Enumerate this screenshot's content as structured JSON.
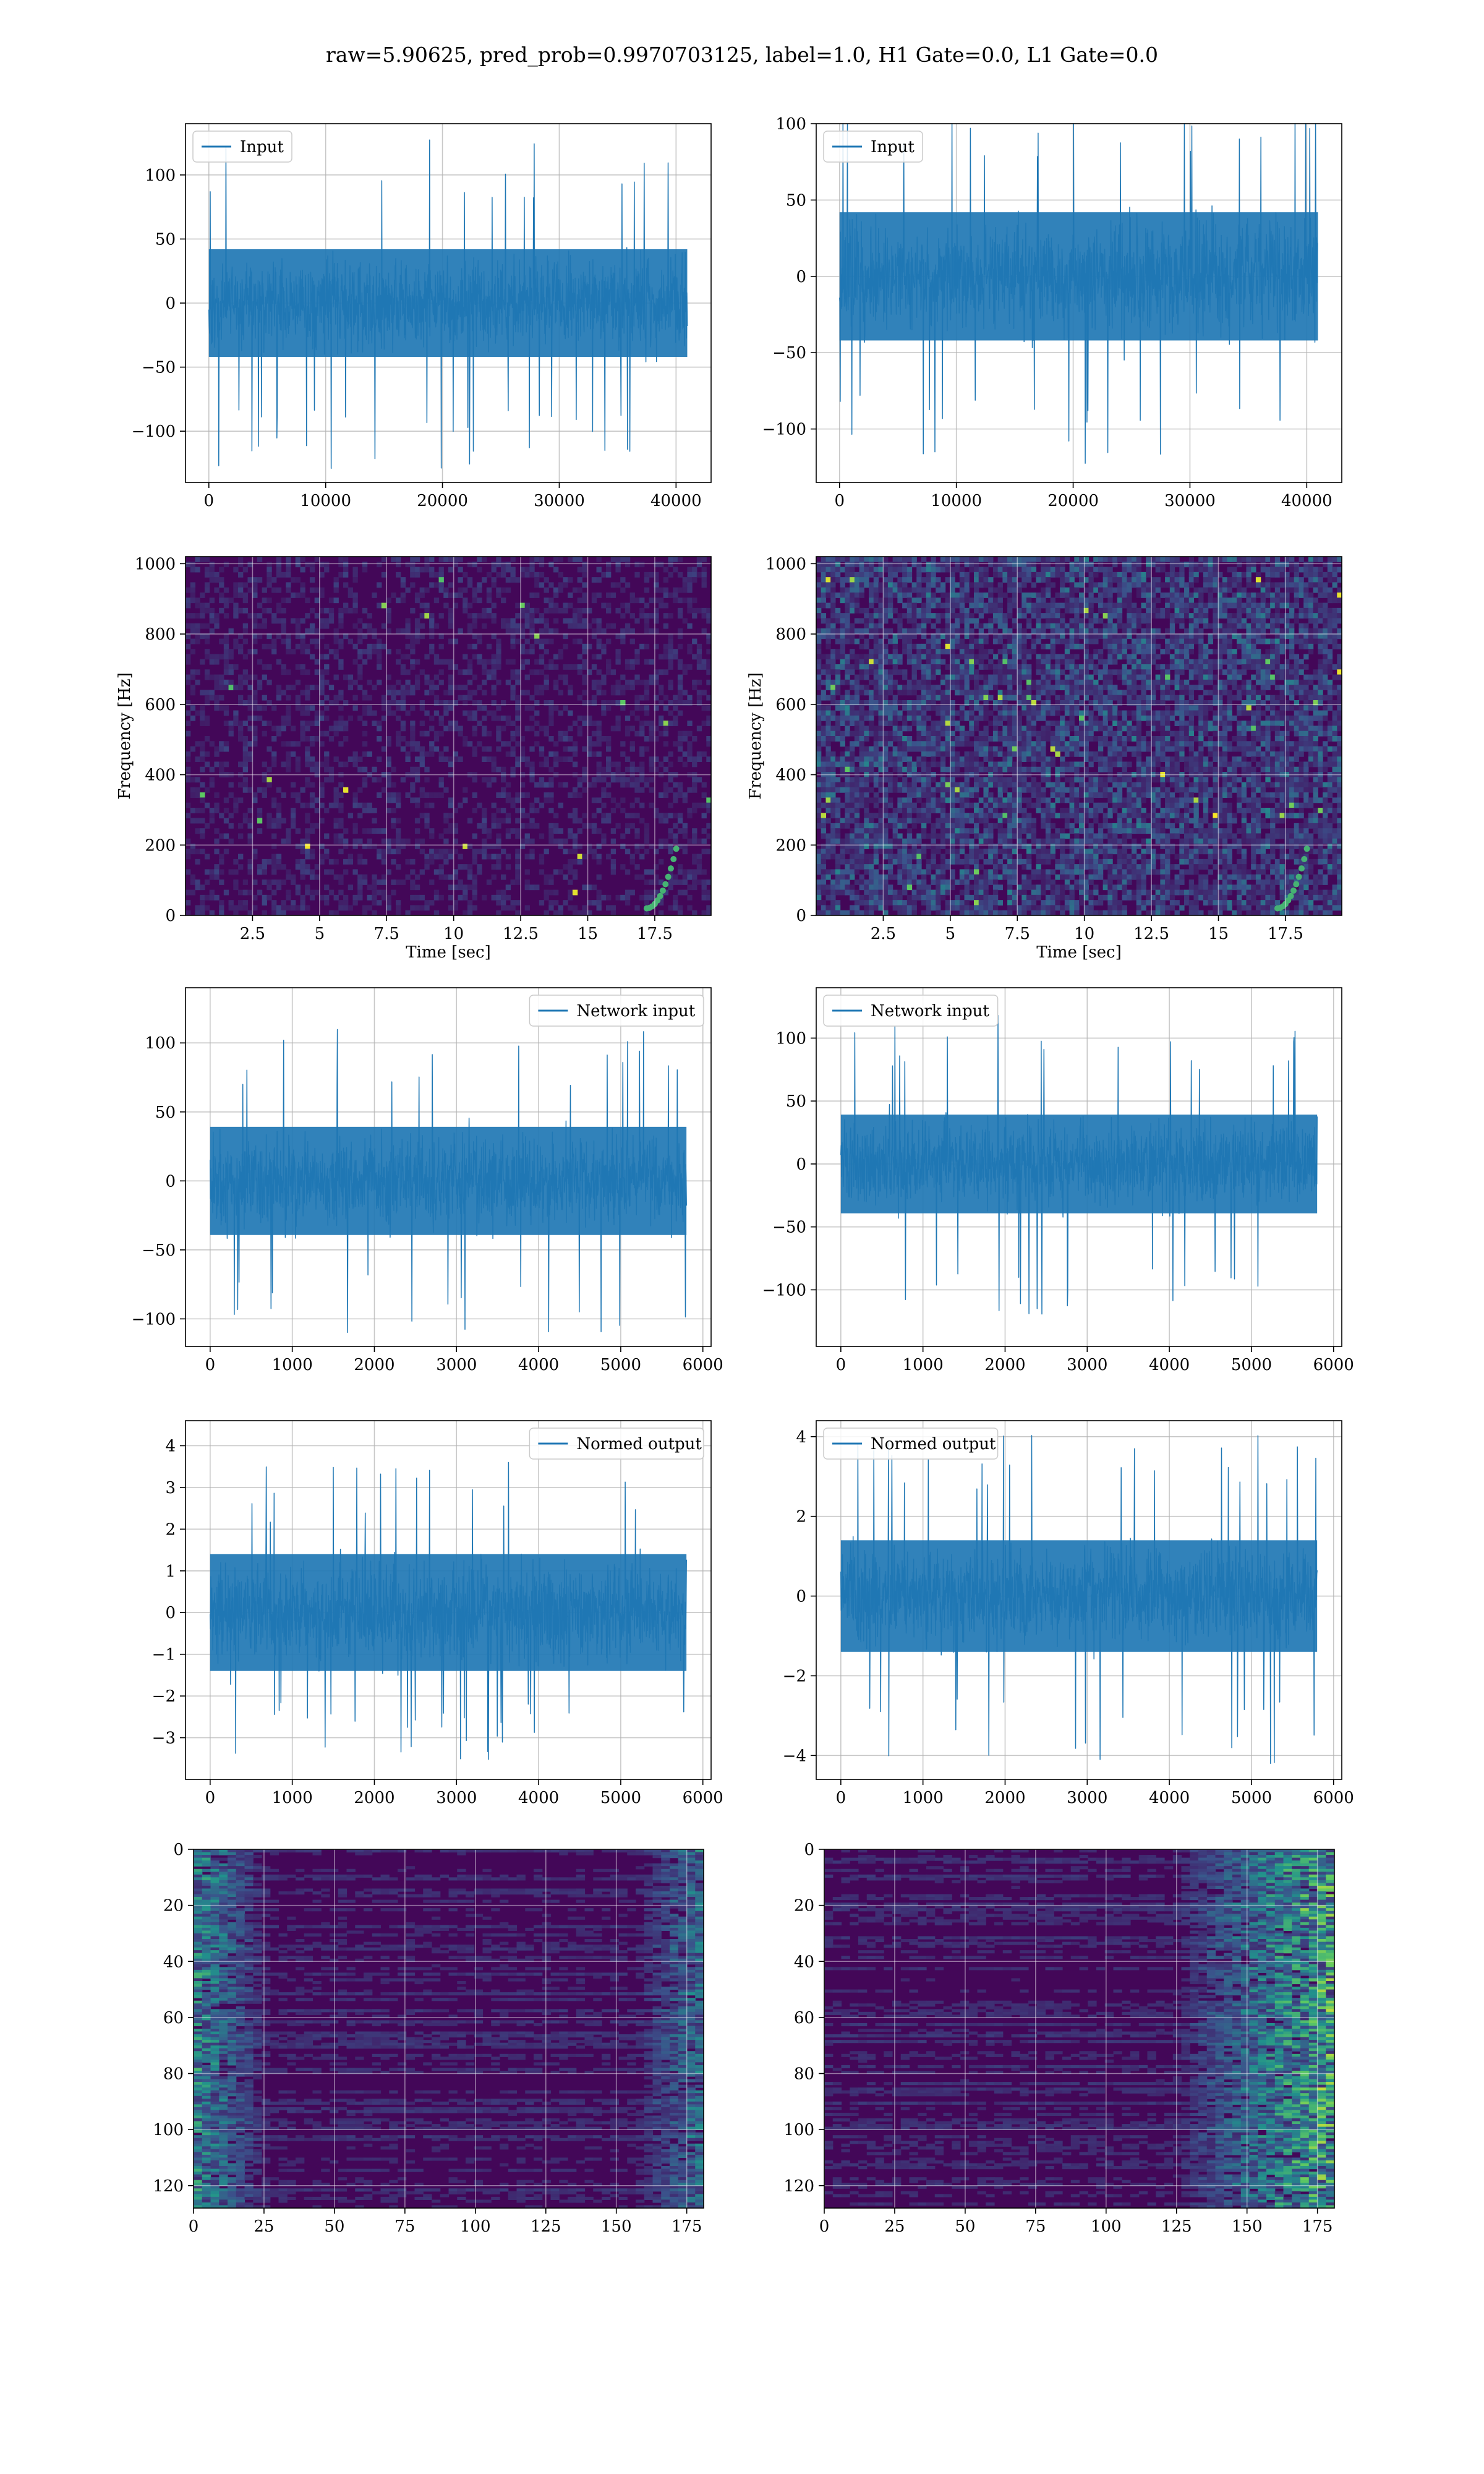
{
  "suptitle": "raw=5.90625, pred_prob=0.9970703125, label=1.0, H1 Gate=0.0, L1 Gate=0.0",
  "colors": {
    "line": "#1f77b4",
    "grid": "#b0b0b0",
    "axis": "#000000",
    "viridis_dark": "#440154",
    "viridis_mid": "#31688e",
    "viridis_teal": "#21918c",
    "viridis_light": "#5ec962",
    "viridis_yellow": "#fde725"
  },
  "chart_data": [
    {
      "id": "p1",
      "type": "line",
      "series": [
        {
          "name": "Input"
        }
      ],
      "legend": "top-left",
      "xlim": [
        -2000,
        43000
      ],
      "ylim": [
        -140,
        140
      ],
      "xticks": [
        0,
        10000,
        20000,
        30000,
        40000
      ],
      "yticks": [
        -100,
        -50,
        0,
        50,
        100
      ],
      "signal": {
        "n": 40960,
        "amp_core": 30,
        "amp_peak": 130,
        "y_mid": 0
      },
      "grid": true
    },
    {
      "id": "p2",
      "type": "line",
      "series": [
        {
          "name": "Input"
        }
      ],
      "legend": "top-left",
      "xlim": [
        -2000,
        43000
      ],
      "ylim": [
        -135,
        100
      ],
      "xticks": [
        0,
        10000,
        20000,
        30000,
        40000
      ],
      "yticks": [
        -100,
        -50,
        0,
        50,
        100
      ],
      "signal": {
        "n": 40960,
        "amp_core": 30,
        "amp_peak": 125,
        "y_mid": 0
      },
      "grid": true
    },
    {
      "id": "p3",
      "type": "heatmap",
      "xlabel": "Time [sec]",
      "ylabel": "Frequency [Hz]",
      "xlim": [
        0,
        19.6
      ],
      "ylim": [
        0,
        1020
      ],
      "xticks": [
        2.5,
        5.0,
        7.5,
        10.0,
        12.5,
        15.0,
        17.5
      ],
      "yticks": [
        0,
        200,
        400,
        600,
        800,
        1000
      ],
      "grid": true,
      "intensity": "low"
    },
    {
      "id": "p4",
      "type": "heatmap",
      "xlabel": "Time [sec]",
      "ylabel": "Frequency [Hz]",
      "xlim": [
        0,
        19.6
      ],
      "ylim": [
        0,
        1020
      ],
      "xticks": [
        2.5,
        5.0,
        7.5,
        10.0,
        12.5,
        15.0,
        17.5
      ],
      "yticks": [
        0,
        200,
        400,
        600,
        800,
        1000
      ],
      "grid": true,
      "intensity": "medium"
    },
    {
      "id": "p5",
      "type": "line",
      "series": [
        {
          "name": "Network input"
        }
      ],
      "legend": "top-right",
      "xlim": [
        -300,
        6100
      ],
      "ylim": [
        -120,
        140
      ],
      "xticks": [
        0,
        1000,
        2000,
        3000,
        4000,
        5000,
        6000
      ],
      "yticks": [
        -100,
        -50,
        0,
        50,
        100
      ],
      "signal": {
        "n": 5800,
        "amp_core": 28,
        "amp_peak": 110,
        "y_mid": 0
      },
      "grid": true
    },
    {
      "id": "p6",
      "type": "line",
      "series": [
        {
          "name": "Network input"
        }
      ],
      "legend": "top-left",
      "xlim": [
        -300,
        6100
      ],
      "ylim": [
        -145,
        140
      ],
      "xticks": [
        0,
        1000,
        2000,
        3000,
        4000,
        5000,
        6000
      ],
      "yticks": [
        -100,
        -50,
        0,
        50,
        100
      ],
      "signal": {
        "n": 5800,
        "amp_core": 28,
        "amp_peak": 120,
        "y_mid": 0
      },
      "grid": true
    },
    {
      "id": "p7",
      "type": "line",
      "series": [
        {
          "name": "Normed output"
        }
      ],
      "legend": "top-right",
      "xlim": [
        -300,
        6100
      ],
      "ylim": [
        -4.0,
        4.6
      ],
      "xticks": [
        0,
        1000,
        2000,
        3000,
        4000,
        5000,
        6000
      ],
      "yticks": [
        -3,
        -2,
        -1,
        0,
        1,
        2,
        3,
        4
      ],
      "signal": {
        "n": 5800,
        "amp_core": 1.0,
        "amp_peak": 3.6,
        "y_mid": 0
      },
      "grid": true
    },
    {
      "id": "p8",
      "type": "line",
      "series": [
        {
          "name": "Normed output"
        }
      ],
      "legend": "top-left",
      "xlim": [
        -300,
        6100
      ],
      "ylim": [
        -4.6,
        4.4
      ],
      "xticks": [
        0,
        1000,
        2000,
        3000,
        4000,
        5000,
        6000
      ],
      "yticks": [
        -4,
        -2,
        0,
        2,
        4
      ],
      "signal": {
        "n": 5800,
        "amp_core": 1.0,
        "amp_peak": 4.2,
        "y_mid": 0
      },
      "grid": true
    },
    {
      "id": "p9",
      "type": "heatmap",
      "xlim": [
        0,
        181
      ],
      "ylim": [
        128,
        0
      ],
      "xticks": [
        0,
        25,
        50,
        75,
        100,
        125,
        150,
        175
      ],
      "yticks": [
        0,
        20,
        40,
        60,
        80,
        100,
        120
      ],
      "grid": true,
      "bright": "left"
    },
    {
      "id": "p10",
      "type": "heatmap",
      "xlim": [
        0,
        181
      ],
      "ylim": [
        128,
        0
      ],
      "xticks": [
        0,
        25,
        50,
        75,
        100,
        125,
        150,
        175
      ],
      "yticks": [
        0,
        20,
        40,
        60,
        80,
        100,
        120
      ],
      "grid": true,
      "bright": "right"
    }
  ]
}
